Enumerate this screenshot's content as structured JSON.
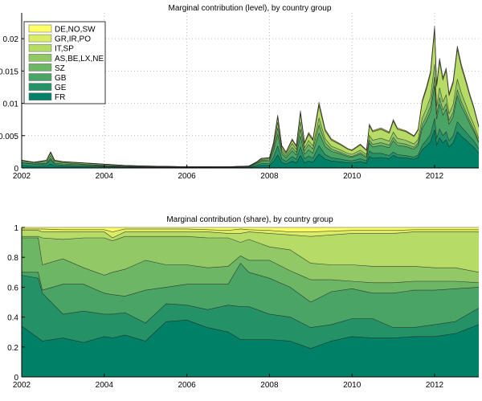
{
  "chart_data": [
    {
      "type": "area",
      "stacked": true,
      "title": "Marginal contribution (level), by country group",
      "xlabel": "",
      "ylabel": "",
      "xlim": [
        2002,
        2013.07
      ],
      "ylim": [
        0,
        0.024
      ],
      "xticks": [
        "2002",
        "2004",
        "2006",
        "2008",
        "2010",
        "2012"
      ],
      "yticks": [
        "0",
        "0.005",
        "0.01",
        "0.015",
        "0.02"
      ],
      "grid": true,
      "legend_placement": "top-left",
      "legend": [
        "DE,NO,SW",
        "GR,IR,PO",
        "IT,SP",
        "AS,BE,LX,NE",
        "SZ",
        "GB",
        "GE",
        "FR"
      ],
      "x": [
        2002.0,
        2002.3,
        2002.6,
        2002.7,
        2002.8,
        2003.0,
        2003.5,
        2004.0,
        2004.5,
        2005.0,
        2006.0,
        2007.0,
        2007.5,
        2007.7,
        2007.8,
        2008.0,
        2008.1,
        2008.2,
        2008.3,
        2008.4,
        2008.55,
        2008.65,
        2008.75,
        2008.85,
        2008.95,
        2009.05,
        2009.2,
        2009.35,
        2009.5,
        2009.7,
        2009.9,
        2010.0,
        2010.2,
        2010.35,
        2010.42,
        2010.5,
        2010.7,
        2010.9,
        2011.0,
        2011.1,
        2011.3,
        2011.5,
        2011.6,
        2011.7,
        2011.8,
        2011.9,
        2012.0,
        2012.05,
        2012.12,
        2012.2,
        2012.28,
        2012.35,
        2012.45,
        2012.55,
        2012.65,
        2012.75,
        2012.85,
        2012.95,
        2013.07
      ],
      "total": [
        0.0012,
        0.0009,
        0.0012,
        0.0025,
        0.0012,
        0.001,
        0.0008,
        0.0006,
        0.0004,
        0.0003,
        0.0002,
        0.0002,
        0.0003,
        0.001,
        0.0015,
        0.0016,
        0.004,
        0.0082,
        0.0035,
        0.0025,
        0.0045,
        0.0035,
        0.0089,
        0.004,
        0.0055,
        0.0045,
        0.0102,
        0.006,
        0.0045,
        0.0038,
        0.003,
        0.0028,
        0.0037,
        0.0028,
        0.0068,
        0.0058,
        0.0062,
        0.0056,
        0.0075,
        0.0062,
        0.0058,
        0.005,
        0.006,
        0.0105,
        0.0125,
        0.015,
        0.022,
        0.013,
        0.017,
        0.014,
        0.0155,
        0.0115,
        0.0135,
        0.0189,
        0.016,
        0.0138,
        0.0115,
        0.0095,
        0.0065
      ],
      "note_layers": "each layer = total × share (second chart)"
    },
    {
      "type": "area",
      "stacked": true,
      "title": "Marginal contribution (share), by country group",
      "xlabel": "",
      "ylabel": "",
      "xlim": [
        2002,
        2013.07
      ],
      "ylim": [
        0,
        1
      ],
      "xticks": [
        "2002",
        "2004",
        "2006",
        "2008",
        "2010",
        "2012"
      ],
      "yticks": [
        "0",
        "0.2",
        "0.4",
        "0.6",
        "0.8",
        "1"
      ],
      "x": [
        2002.0,
        2002.4,
        2002.5,
        2003.0,
        2003.5,
        2004.0,
        2004.2,
        2004.5,
        2005.0,
        2005.5,
        2006.0,
        2006.5,
        2007.0,
        2007.3,
        2007.5,
        2008.0,
        2008.5,
        2009.0,
        2009.5,
        2010.0,
        2010.5,
        2011.0,
        2011.5,
        2012.0,
        2012.5,
        2013.07
      ],
      "series_cumulative": [
        {
          "name": "FR",
          "color": "#008066",
          "values": [
            0.34,
            0.26,
            0.24,
            0.26,
            0.23,
            0.27,
            0.26,
            0.28,
            0.24,
            0.37,
            0.38,
            0.33,
            0.3,
            0.25,
            0.25,
            0.25,
            0.24,
            0.19,
            0.24,
            0.27,
            0.26,
            0.26,
            0.27,
            0.27,
            0.29,
            0.35
          ]
        },
        {
          "name": "GE",
          "color": "#249266",
          "values": [
            0.68,
            0.66,
            0.56,
            0.42,
            0.44,
            0.42,
            0.42,
            0.43,
            0.36,
            0.49,
            0.48,
            0.45,
            0.48,
            0.47,
            0.47,
            0.42,
            0.4,
            0.33,
            0.35,
            0.39,
            0.39,
            0.33,
            0.33,
            0.35,
            0.37,
            0.46
          ]
        },
        {
          "name": "GB",
          "color": "#49A466",
          "values": [
            0.7,
            0.7,
            0.58,
            0.62,
            0.62,
            0.56,
            0.55,
            0.54,
            0.58,
            0.6,
            0.62,
            0.62,
            0.62,
            0.76,
            0.7,
            0.66,
            0.6,
            0.5,
            0.57,
            0.59,
            0.56,
            0.56,
            0.58,
            0.58,
            0.59,
            0.6
          ]
        },
        {
          "name": "SZ",
          "color": "#6DB666",
          "values": [
            0.93,
            0.93,
            0.75,
            0.79,
            0.73,
            0.68,
            0.7,
            0.72,
            0.78,
            0.75,
            0.75,
            0.73,
            0.74,
            0.81,
            0.78,
            0.78,
            0.71,
            0.65,
            0.65,
            0.64,
            0.63,
            0.63,
            0.64,
            0.64,
            0.64,
            0.63
          ]
        },
        {
          "name": "AS,BE,LX,NE",
          "color": "#92C966",
          "values": [
            0.94,
            0.94,
            0.93,
            0.92,
            0.93,
            0.93,
            0.91,
            0.94,
            0.94,
            0.94,
            0.94,
            0.93,
            0.93,
            0.9,
            0.92,
            0.87,
            0.85,
            0.76,
            0.75,
            0.75,
            0.74,
            0.74,
            0.74,
            0.73,
            0.73,
            0.7
          ]
        },
        {
          "name": "IT,SP",
          "color": "#B6DB66",
          "values": [
            0.98,
            0.98,
            0.97,
            0.97,
            0.97,
            0.97,
            0.93,
            0.97,
            0.97,
            0.97,
            0.97,
            0.97,
            0.96,
            0.96,
            0.97,
            0.96,
            0.95,
            0.94,
            0.95,
            0.96,
            0.96,
            0.96,
            0.97,
            0.97,
            0.97,
            0.97
          ]
        },
        {
          "name": "GR,IR,PO",
          "color": "#DBED66",
          "values": [
            0.99,
            0.99,
            0.99,
            0.985,
            0.985,
            0.985,
            0.97,
            0.99,
            0.99,
            0.99,
            0.99,
            0.985,
            0.98,
            0.99,
            0.985,
            0.98,
            0.97,
            0.97,
            0.975,
            0.98,
            0.98,
            0.98,
            0.985,
            0.985,
            0.985,
            0.985
          ]
        },
        {
          "name": "DE,NO,SW",
          "color": "#FFFF66",
          "values": [
            1,
            1,
            1,
            1,
            1,
            1,
            1,
            1,
            1,
            1,
            1,
            1,
            1,
            1,
            1,
            1,
            1,
            1,
            1,
            1,
            1,
            1,
            1,
            1,
            1,
            1
          ]
        }
      ]
    }
  ]
}
